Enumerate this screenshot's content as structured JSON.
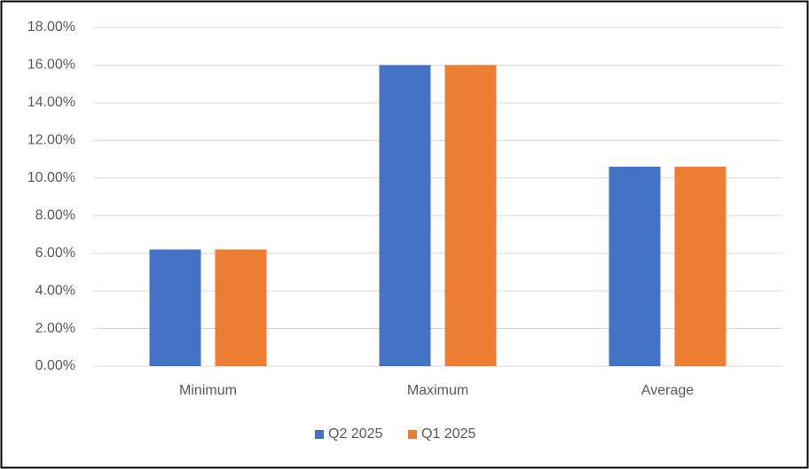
{
  "chart_data": {
    "type": "bar",
    "categories": [
      "Minimum",
      "Maximum",
      "Average"
    ],
    "series": [
      {
        "name": "Q2 2025",
        "color": "#4472c4",
        "values": [
          6.2,
          16.0,
          10.6
        ]
      },
      {
        "name": "Q1 2025",
        "color": "#ed7d31",
        "values": [
          6.2,
          16.0,
          10.6
        ]
      }
    ],
    "ylim": [
      0,
      18
    ],
    "yticks": [
      {
        "value": 0,
        "label": "0.00%"
      },
      {
        "value": 2,
        "label": "2.00%"
      },
      {
        "value": 4,
        "label": "4.00%"
      },
      {
        "value": 6,
        "label": "6.00%"
      },
      {
        "value": 8,
        "label": "8.00%"
      },
      {
        "value": 10,
        "label": "10.00%"
      },
      {
        "value": 12,
        "label": "12.00%"
      },
      {
        "value": 14,
        "label": "14.00%"
      },
      {
        "value": 16,
        "label": "16.00%"
      },
      {
        "value": 18,
        "label": "18.00%"
      }
    ],
    "grid": true,
    "legend": "bottom"
  }
}
